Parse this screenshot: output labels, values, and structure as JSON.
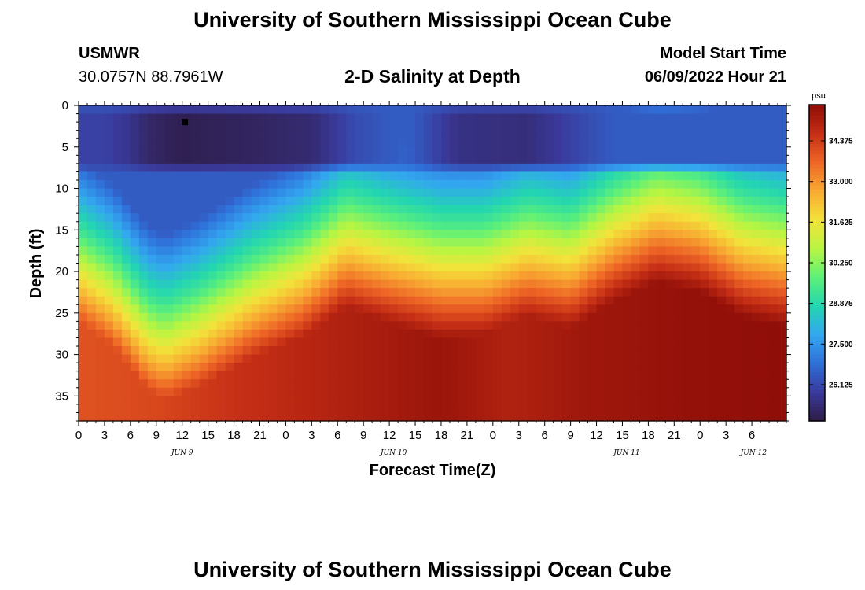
{
  "page": {
    "title": "University of Southern Mississippi Ocean Cube",
    "footer_title": "University of Southern Mississippi Ocean Cube"
  },
  "station": {
    "name": "USMWR",
    "coords": "30.0757N  88.7961W"
  },
  "plot_title": "2-D Salinity at Depth",
  "model_start": {
    "label": "Model Start Time",
    "value": "06/09/2022 Hour 21"
  },
  "colors": {
    "marker": "#000000",
    "frame": "#000000",
    "colormap": [
      "#2e1b44",
      "#3a3a9c",
      "#2f6fd8",
      "#33a6f0",
      "#23d6b0",
      "#5cf07a",
      "#b8f542",
      "#f3e33b",
      "#f8ab32",
      "#ee6626",
      "#c62f16",
      "#8f0e08"
    ]
  },
  "chart_data": {
    "type": "heatmap",
    "title": "2-D Salinity at Depth",
    "xlabel": "Forecast Time(Z)",
    "ylabel": "Depth (ft)",
    "units": "psu",
    "x_range_hours": [
      0,
      82
    ],
    "y_range_ft": [
      0,
      38
    ],
    "x_ticks": [
      {
        "hour": 0,
        "label": "0"
      },
      {
        "hour": 3,
        "label": "3"
      },
      {
        "hour": 6,
        "label": "6"
      },
      {
        "hour": 9,
        "label": "9"
      },
      {
        "hour": 12,
        "label": "12"
      },
      {
        "hour": 15,
        "label": "15"
      },
      {
        "hour": 18,
        "label": "18"
      },
      {
        "hour": 21,
        "label": "21"
      },
      {
        "hour": 24,
        "label": "0"
      },
      {
        "hour": 27,
        "label": "3"
      },
      {
        "hour": 30,
        "label": "6"
      },
      {
        "hour": 33,
        "label": "9"
      },
      {
        "hour": 36,
        "label": "12"
      },
      {
        "hour": 39,
        "label": "15"
      },
      {
        "hour": 42,
        "label": "18"
      },
      {
        "hour": 45,
        "label": "21"
      },
      {
        "hour": 48,
        "label": "0"
      },
      {
        "hour": 51,
        "label": "3"
      },
      {
        "hour": 54,
        "label": "6"
      },
      {
        "hour": 57,
        "label": "9"
      },
      {
        "hour": 60,
        "label": "12"
      },
      {
        "hour": 63,
        "label": "15"
      },
      {
        "hour": 66,
        "label": "18"
      },
      {
        "hour": 69,
        "label": "21"
      },
      {
        "hour": 72,
        "label": "0"
      },
      {
        "hour": 75,
        "label": "3"
      },
      {
        "hour": 78,
        "label": "6"
      }
    ],
    "date_labels": [
      {
        "hour": 12,
        "label": "JUN 9"
      },
      {
        "hour": 36.5,
        "label": "JUN 10"
      },
      {
        "hour": 63.5,
        "label": "JUN 11"
      },
      {
        "hour": 78.2,
        "label": "JUN 12"
      }
    ],
    "y_ticks": [
      {
        "depth": 0,
        "label": "0"
      },
      {
        "depth": 5,
        "label": "5"
      },
      {
        "depth": 10,
        "label": "10"
      },
      {
        "depth": 15,
        "label": "15"
      },
      {
        "depth": 20,
        "label": "20"
      },
      {
        "depth": 25,
        "label": "25"
      },
      {
        "depth": 30,
        "label": "30"
      },
      {
        "depth": 35,
        "label": "35"
      }
    ],
    "colorbar": {
      "unit_label": "psu",
      "range": [
        24.9,
        35.6
      ],
      "ticks": [
        {
          "value": 34.375,
          "label": "34.375"
        },
        {
          "value": 33.0,
          "label": "33.000"
        },
        {
          "value": 31.625,
          "label": "31.625"
        },
        {
          "value": 30.25,
          "label": "30.250"
        },
        {
          "value": 28.875,
          "label": "28.875"
        },
        {
          "value": 27.5,
          "label": "27.500"
        },
        {
          "value": 26.125,
          "label": "26.125"
        }
      ]
    },
    "grid": {
      "nx": 82,
      "ny": 38
    },
    "model": {
      "surface_psu": 26.5,
      "fresh_layer": [
        {
          "hour": 3,
          "psu": 26.0
        },
        {
          "hour": 6,
          "psu": 25.7
        },
        {
          "hour": 8,
          "psu": 25.3
        },
        {
          "hour": 12,
          "psu": 25.05
        },
        {
          "hour": 20,
          "psu": 25.2
        },
        {
          "hour": 27,
          "psu": 25.4
        },
        {
          "hour": 32,
          "psu": 26.2
        },
        {
          "hour": 38,
          "psu": 26.6
        },
        {
          "hour": 44,
          "psu": 25.6
        },
        {
          "hour": 52,
          "psu": 25.5
        },
        {
          "hour": 56,
          "psu": 25.9
        },
        {
          "hour": 62,
          "psu": 26.5
        },
        {
          "hour": 82,
          "psu": 26.5
        }
      ],
      "fresh_layer_depth_range_ft": [
        1,
        7
      ],
      "halocline_depth": [
        {
          "hour": 0,
          "depth": 15
        },
        {
          "hour": 4,
          "depth": 18
        },
        {
          "hour": 8,
          "depth": 23
        },
        {
          "hour": 10,
          "depth": 24
        },
        {
          "hour": 14,
          "depth": 22
        },
        {
          "hour": 20,
          "depth": 18
        },
        {
          "hour": 26,
          "depth": 15
        },
        {
          "hour": 31,
          "depth": 11
        },
        {
          "hour": 36,
          "depth": 12.5
        },
        {
          "hour": 42,
          "depth": 14
        },
        {
          "hour": 47,
          "depth": 14
        },
        {
          "hour": 52,
          "depth": 12
        },
        {
          "hour": 57,
          "depth": 13
        },
        {
          "hour": 62,
          "depth": 9.5
        },
        {
          "hour": 67,
          "depth": 7
        },
        {
          "hour": 72,
          "depth": 8
        },
        {
          "hour": 77,
          "depth": 11
        },
        {
          "hour": 82,
          "depth": 12
        }
      ],
      "halocline_psu": 29.3,
      "gradient_psu_per_ft": 0.43,
      "deep_max": [
        {
          "hour": 0,
          "psu": 34.0
        },
        {
          "hour": 9,
          "psu": 34.2
        },
        {
          "hour": 18,
          "psu": 34.6
        },
        {
          "hour": 33,
          "psu": 35.1
        },
        {
          "hour": 42,
          "psu": 35.4
        },
        {
          "hour": 50,
          "psu": 35.0
        },
        {
          "hour": 58,
          "psu": 35.3
        },
        {
          "hour": 70,
          "psu": 35.5
        },
        {
          "hour": 82,
          "psu": 35.6
        }
      ]
    },
    "marker": {
      "hour": 12.3,
      "depth": 2
    }
  }
}
